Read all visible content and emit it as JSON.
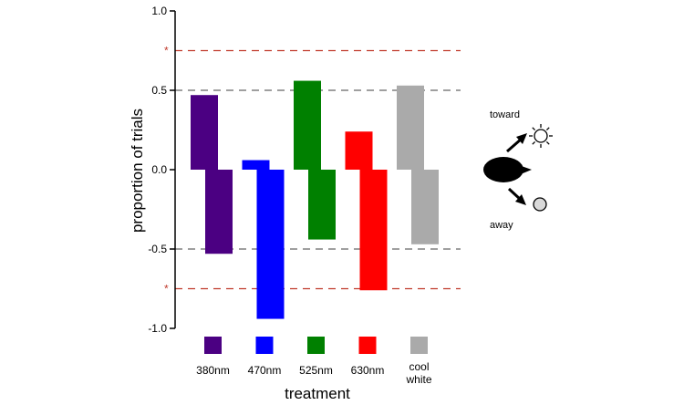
{
  "chart_data": {
    "type": "bar",
    "xlabel": "treatment",
    "ylabel": "proportion of trials",
    "ylim": [
      -1.0,
      1.0
    ],
    "yticks": [
      {
        "value": 1.0,
        "label": "1.0"
      },
      {
        "value": 0.5,
        "label": "0.5"
      },
      {
        "value": 0.0,
        "label": "0.0"
      },
      {
        "value": -0.5,
        "label": "-0.5"
      },
      {
        "value": -1.0,
        "label": "-1.0"
      }
    ],
    "categories": [
      "380nm",
      "470nm",
      "525nm",
      "630nm",
      "cool white"
    ],
    "colors": [
      "#4b0082",
      "#0000ff",
      "#008000",
      "#ff0000",
      "#aaaaaa"
    ],
    "toward": [
      0.47,
      0.06,
      0.56,
      0.24,
      0.53
    ],
    "away": [
      -0.53,
      -0.94,
      -0.44,
      -0.76,
      -0.47
    ],
    "reference_lines": [
      {
        "value": 0.75,
        "color": "#c0392b",
        "marker": "*"
      },
      {
        "value": 0.5,
        "color": "#666666"
      },
      {
        "value": -0.5,
        "color": "#666666"
      },
      {
        "value": -0.75,
        "color": "#c0392b",
        "marker": "*"
      }
    ],
    "legend": {
      "placement": "bottom",
      "labels": [
        "380nm",
        "470nm",
        "525nm",
        "630nm",
        "cool white"
      ]
    },
    "inset": {
      "toward_label": "toward",
      "away_label": "away",
      "toward_icon": "sun-icon",
      "away_icon": "dim-light-icon",
      "subject_icon": "fish-icon"
    }
  }
}
